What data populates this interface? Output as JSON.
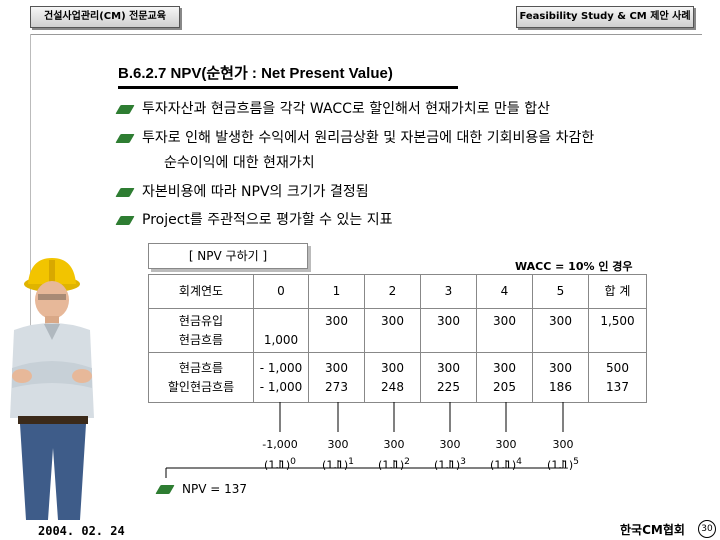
{
  "header": {
    "left_tab": "건설사업관리(CM) 전문교육",
    "right_tab": "Feasibility Study & CM 제안 사례"
  },
  "title": "B.6.2.7 NPV(순현가 : Net Present Value)",
  "bullets": [
    "투자자산과 현금흐름을 각각 WACC로 할인해서 현재가치로 만들 합산",
    "투자로 인해 발생한 수익에서 원리금상환 및 자본금에 대한 기회비용을 차감한",
    "순수이익에 대한 현재가치",
    "자본비용에 따라 NPV의 크기가 결정됨",
    "Project를 주관적으로 평가할 수 있는 지표"
  ],
  "npv_box_label": "[ NPV 구하기 ]",
  "wacc_note": "WACC = 10% 인 경우",
  "table": {
    "header": [
      "회계연도",
      "0",
      "1",
      "2",
      "3",
      "4",
      "5",
      "합 계"
    ],
    "row1_label": [
      "현금유입",
      "현금흐름"
    ],
    "row1_year0": "1,000",
    "row1_values": [
      "300",
      "300",
      "300",
      "300",
      "300",
      "1,500"
    ],
    "row2_label": [
      "현금흐름",
      "할인현금흐름"
    ],
    "row2_year0": [
      "- 1,000",
      "- 1,000"
    ],
    "row2_cash": [
      "300",
      "300",
      "300",
      "300",
      "300",
      "500"
    ],
    "row2_disc": [
      "273",
      "248",
      "225",
      "205",
      "186",
      "137"
    ]
  },
  "discount": {
    "numerators": [
      "-1,000",
      "300",
      "300",
      "300",
      "300",
      "300"
    ],
    "base": "(1.1)",
    "exponents": [
      "0",
      "1",
      "2",
      "3",
      "4",
      "5"
    ]
  },
  "npv_result": "NPV = 137",
  "footer": {
    "date": "2004. 02. 24",
    "org": "한국CM협회",
    "page": "30"
  }
}
